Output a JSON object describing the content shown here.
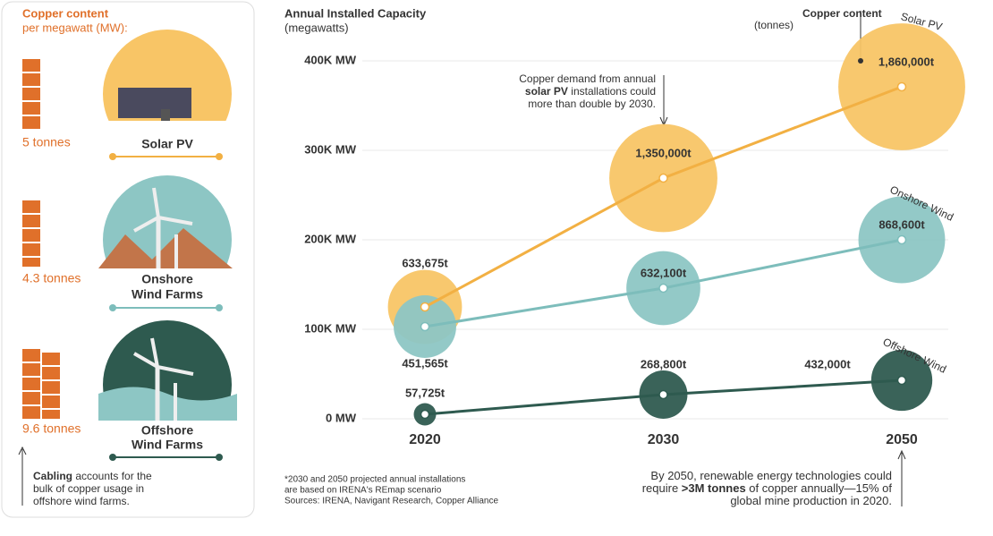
{
  "sidebar": {
    "title": "Copper content",
    "subtitle": "per megawatt (MW):",
    "items": [
      {
        "amount": "5 tonnes",
        "label": [
          "Solar PV"
        ]
      },
      {
        "amount": "4.3 tonnes",
        "label": [
          "Onshore",
          "Wind Farms"
        ]
      },
      {
        "amount": "9.6 tonnes",
        "label": [
          "Offshore",
          "Wind Farms"
        ]
      }
    ],
    "note": [
      [
        {
          "text": "Cabling",
          "bold": true
        },
        {
          "text": " accounts for the"
        }
      ],
      [
        {
          "text": "bulk of copper usage in"
        }
      ],
      [
        {
          "text": "offshore wind farms."
        }
      ]
    ]
  },
  "chart_data": {
    "type": "bubble",
    "title": "Annual Installed Capacity",
    "subtitle": "(megawatts)",
    "size_title": "Copper content",
    "size_subtitle": "(tonnes)",
    "categories": [
      "2020",
      "2030",
      "2050"
    ],
    "ylim": [
      0,
      460000
    ],
    "yticks": [
      {
        "value": 0,
        "label": "0 MW"
      },
      {
        "value": 100000,
        "label": "100K MW"
      },
      {
        "value": 200000,
        "label": "200K MW"
      },
      {
        "value": 300000,
        "label": "300K MW"
      },
      {
        "value": 400000,
        "label": "400K MW"
      }
    ],
    "grid": true,
    "series": [
      {
        "name": "Solar PV",
        "color": "#f2b043",
        "bubble_color": "#f8c566",
        "values": [
          125000,
          269000,
          371000
        ],
        "copper": [
          633675,
          1350000,
          1860000
        ],
        "copper_labels": [
          "633,675t",
          "1,350,000t",
          "1,860,000t"
        ]
      },
      {
        "name": "Onshore Wind",
        "color": "#7dbdbb",
        "bubble_color": "#8dc6c4",
        "values": [
          103000,
          146000,
          200000
        ],
        "copper": [
          451565,
          632100,
          868600
        ],
        "copper_labels": [
          "451,565t",
          "632,100t",
          "868,600t"
        ]
      },
      {
        "name": "Offshore Wind",
        "color": "#2e5a4f",
        "bubble_color": "#2f5b50",
        "values": [
          5000,
          27000,
          43000
        ],
        "copper": [
          57725,
          268800,
          432000
        ],
        "copper_labels": [
          "57,725t",
          "268,800t",
          "432,000t"
        ]
      }
    ],
    "annotation": [
      [
        {
          "text": "Copper demand from annual"
        }
      ],
      [
        {
          "text": "solar PV",
          "bold": true
        },
        {
          "text": " installations could"
        }
      ],
      [
        {
          "text": "more than double by 2030."
        }
      ]
    ],
    "footnote": [
      "*2030 and 2050 projected annual installations",
      "are based on IRENA's REmap scenario",
      "Sources: IRENA, Navigant Research, Copper Alliance"
    ],
    "callout": [
      [
        {
          "text": "By 2050, renewable energy technologies could"
        }
      ],
      [
        {
          "text": "require "
        },
        {
          "text": ">3M tonnes",
          "bold": true
        },
        {
          "text": " of copper annually—15% of"
        }
      ],
      [
        {
          "text": "global mine production in 2020."
        }
      ]
    ]
  }
}
